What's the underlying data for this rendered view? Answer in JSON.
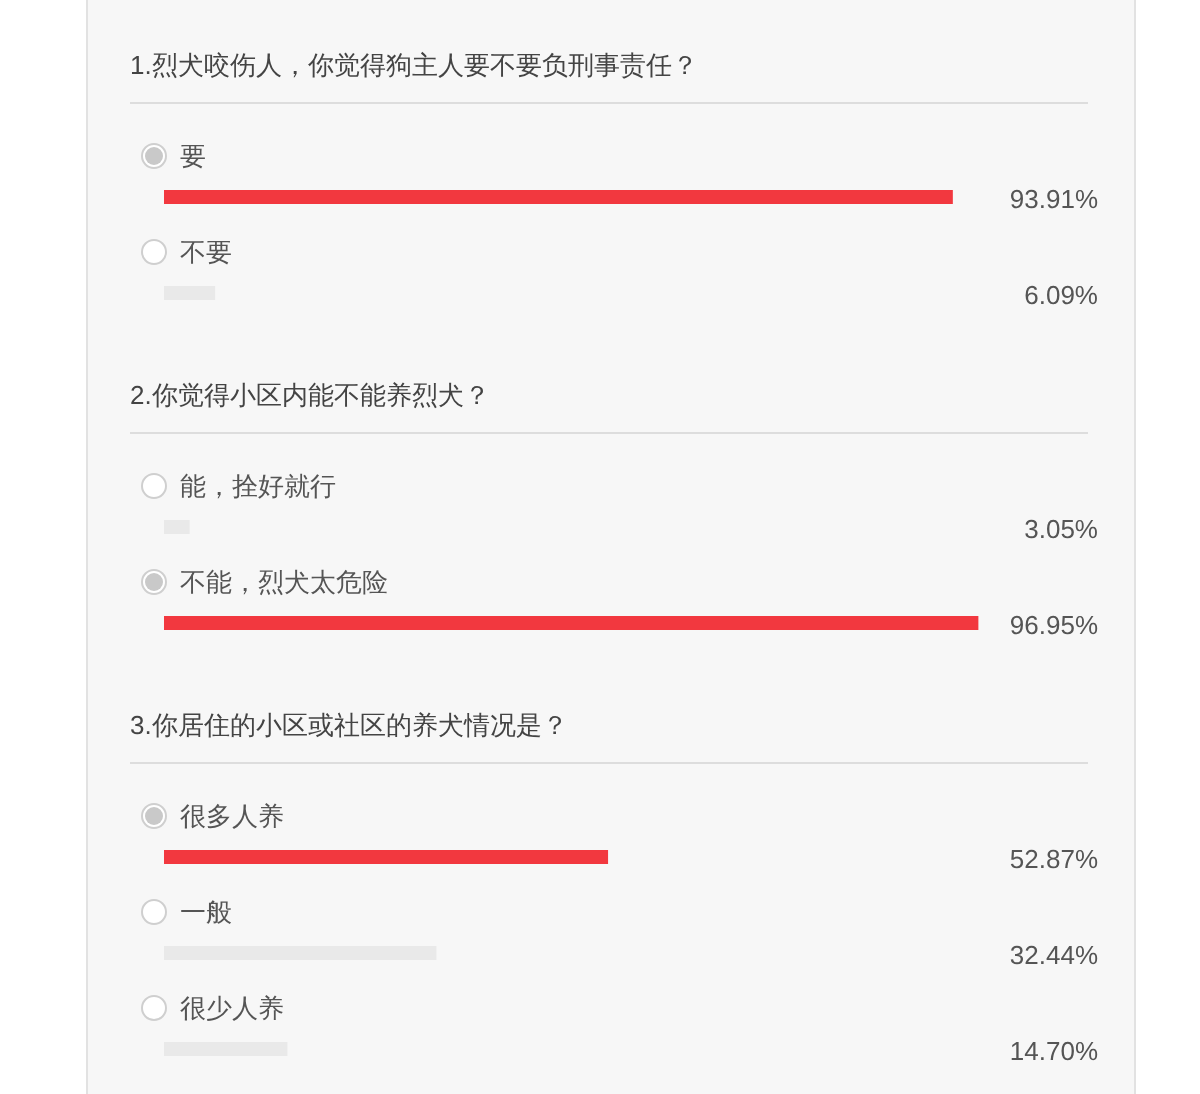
{
  "chart_data": [
    {
      "type": "bar",
      "orientation": "horizontal",
      "title": "1.烈犬咬伤人，你觉得狗主人要不要负刑事责任？",
      "categories": [
        "要",
        "不要"
      ],
      "values": [
        93.91,
        6.09
      ],
      "colors": [
        "#f2383f",
        "#e9e9e9"
      ],
      "value_labels": [
        "93.91%",
        "6.09%"
      ]
    },
    {
      "type": "bar",
      "orientation": "horizontal",
      "title": "2.你觉得小区内能不能养烈犬？",
      "categories": [
        "能，拴好就行",
        "不能，烈犬太危险"
      ],
      "values": [
        3.05,
        96.95
      ],
      "colors": [
        "#e9e9e9",
        "#f2383f"
      ],
      "value_labels": [
        "3.05%",
        "96.95%"
      ]
    },
    {
      "type": "bar",
      "orientation": "horizontal",
      "title": "3.你居住的小区或社区的养犬情况是？",
      "categories": [
        "很多人养",
        "一般",
        "很少人养"
      ],
      "values": [
        52.87,
        32.44,
        14.7
      ],
      "colors": [
        "#f2383f",
        "#e9e9e9",
        "#e9e9e9"
      ],
      "value_labels": [
        "52.87%",
        "32.44%",
        "14.70%"
      ]
    }
  ]
}
